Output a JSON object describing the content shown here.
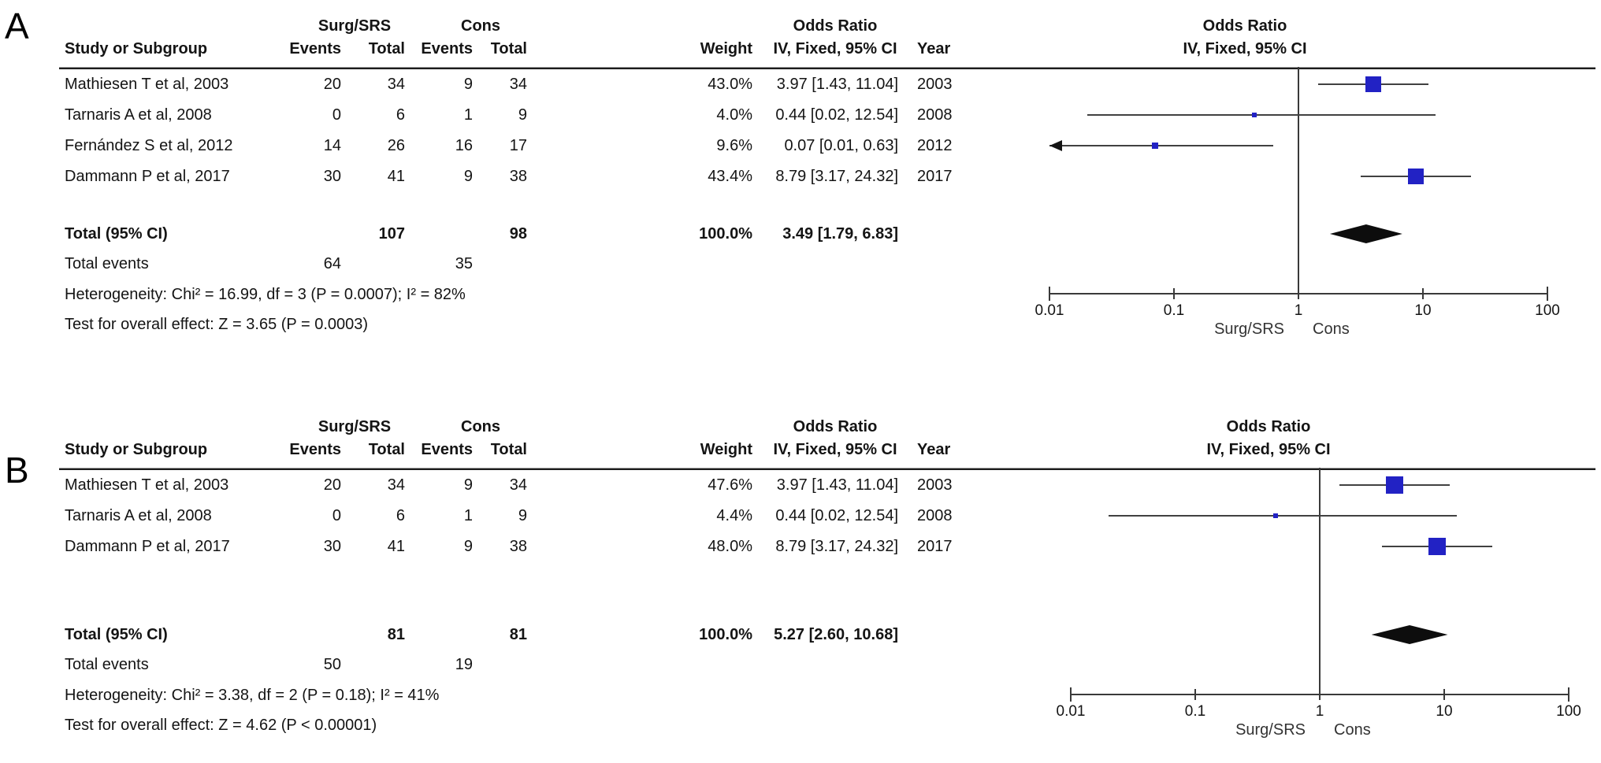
{
  "figure": {
    "description": "Forest plot meta-analysis, two panels"
  },
  "panels": [
    {
      "label": "A",
      "headers": {
        "study": "Study or Subgroup",
        "group1": "Surg/SRS",
        "group2": "Cons",
        "events": "Events",
        "total": "Total",
        "weight": "Weight",
        "or_line1": "Odds Ratio",
        "or_line2": "IV, Fixed, 95% CI",
        "year": "Year",
        "plot_line1": "Odds Ratio",
        "plot_line2": "IV, Fixed, 95% CI"
      },
      "studies": [
        {
          "name": "Mathiesen T et al, 2003",
          "e1": "20",
          "t1": "34",
          "e2": "9",
          "t2": "34",
          "weight": "43.0%",
          "or_text": "3.97 [1.43, 11.04]",
          "year": "2003",
          "or": 3.97,
          "lo": 1.43,
          "hi": 11.04,
          "w": 43.0
        },
        {
          "name": "Tarnaris A et al, 2008",
          "e1": "0",
          "t1": "6",
          "e2": "1",
          "t2": "9",
          "weight": "4.0%",
          "or_text": "0.44 [0.02, 12.54]",
          "year": "2008",
          "or": 0.44,
          "lo": 0.02,
          "hi": 12.54,
          "w": 4.0
        },
        {
          "name": "Fernández S et al, 2012",
          "e1": "14",
          "t1": "26",
          "e2": "16",
          "t2": "17",
          "weight": "9.6%",
          "or_text": "0.07 [0.01, 0.63]",
          "year": "2012",
          "or": 0.07,
          "lo": 0.01,
          "hi": 0.63,
          "w": 9.6
        },
        {
          "name": "Dammann P et al, 2017",
          "e1": "30",
          "t1": "41",
          "e2": "9",
          "t2": "38",
          "weight": "43.4%",
          "or_text": "8.79 [3.17, 24.32]",
          "year": "2017",
          "or": 8.79,
          "lo": 3.17,
          "hi": 24.32,
          "w": 43.4
        }
      ],
      "total": {
        "label": "Total (95% CI)",
        "t1": "107",
        "t2": "98",
        "weight": "100.0%",
        "or_text": "3.49 [1.79, 6.83]",
        "or": 3.49,
        "lo": 1.79,
        "hi": 6.83
      },
      "total_events": {
        "label": "Total events",
        "e1": "64",
        "e2": "35"
      },
      "heterogeneity": "Heterogeneity: Chi² = 16.99, df = 3 (P = 0.0007); I² = 82%",
      "overall": "Test for overall effect: Z = 3.65 (P = 0.0003)",
      "axis": {
        "tick_labels": [
          "0.01",
          "0.1",
          "1",
          "10",
          "100"
        ],
        "ticks": [
          0.01,
          0.1,
          1,
          10,
          100
        ],
        "favours_left": "Surg/SRS",
        "favours_right": "Cons"
      }
    },
    {
      "label": "B",
      "headers": {
        "study": "Study or Subgroup",
        "group1": "Surg/SRS",
        "group2": "Cons",
        "events": "Events",
        "total": "Total",
        "weight": "Weight",
        "or_line1": "Odds Ratio",
        "or_line2": "IV, Fixed, 95% CI",
        "year": "Year",
        "plot_line1": "Odds Ratio",
        "plot_line2": "IV, Fixed, 95% CI"
      },
      "studies": [
        {
          "name": "Mathiesen T et al, 2003",
          "e1": "20",
          "t1": "34",
          "e2": "9",
          "t2": "34",
          "weight": "47.6%",
          "or_text": "3.97 [1.43, 11.04]",
          "year": "2003",
          "or": 3.97,
          "lo": 1.43,
          "hi": 11.04,
          "w": 47.6
        },
        {
          "name": "Tarnaris A et al, 2008",
          "e1": "0",
          "t1": "6",
          "e2": "1",
          "t2": "9",
          "weight": "4.4%",
          "or_text": "0.44 [0.02, 12.54]",
          "year": "2008",
          "or": 0.44,
          "lo": 0.02,
          "hi": 12.54,
          "w": 4.4
        },
        {
          "name": "Dammann P et al, 2017",
          "e1": "30",
          "t1": "41",
          "e2": "9",
          "t2": "38",
          "weight": "48.0%",
          "or_text": "8.79 [3.17, 24.32]",
          "year": "2017",
          "or": 8.79,
          "lo": 3.17,
          "hi": 24.32,
          "w": 48.0
        }
      ],
      "total": {
        "label": "Total (95% CI)",
        "t1": "81",
        "t2": "81",
        "weight": "100.0%",
        "or_text": "5.27 [2.60, 10.68]",
        "or": 5.27,
        "lo": 2.6,
        "hi": 10.68
      },
      "total_events": {
        "label": "Total events",
        "e1": "50",
        "e2": "19"
      },
      "heterogeneity": "Heterogeneity: Chi² = 3.38, df = 2 (P = 0.18); I² = 41%",
      "overall": "Test for overall effect: Z = 4.62 (P < 0.00001)",
      "axis": {
        "tick_labels": [
          "0.01",
          "0.1",
          "1",
          "10",
          "100"
        ],
        "ticks": [
          0.01,
          0.1,
          1,
          10,
          100
        ],
        "favours_left": "Surg/SRS",
        "favours_right": "Cons"
      }
    }
  ],
  "colors": {
    "marker_blue": "#2222c4",
    "diamond_black": "#0d0d0d",
    "line_gray": "#414141"
  },
  "chart_data": [
    {
      "type": "forest",
      "title": "Panel A — Odds Ratio, IV, Fixed, 95% CI",
      "x_scale": "log10",
      "xlim": [
        0.01,
        100
      ],
      "x_ticks": [
        0.01,
        0.1,
        1,
        10,
        100
      ],
      "favours_labels": [
        "Surg/SRS",
        "Cons"
      ],
      "studies": [
        {
          "name": "Mathiesen T et al, 2003",
          "year": 2003,
          "events_surg": 20,
          "total_surg": 34,
          "events_cons": 9,
          "total_cons": 34,
          "weight_pct": 43.0,
          "or": 3.97,
          "ci95": [
            1.43,
            11.04
          ]
        },
        {
          "name": "Tarnaris A et al, 2008",
          "year": 2008,
          "events_surg": 0,
          "total_surg": 6,
          "events_cons": 1,
          "total_cons": 9,
          "weight_pct": 4.0,
          "or": 0.44,
          "ci95": [
            0.02,
            12.54
          ]
        },
        {
          "name": "Fernández S et al, 2012",
          "year": 2012,
          "events_surg": 14,
          "total_surg": 26,
          "events_cons": 16,
          "total_cons": 17,
          "weight_pct": 9.6,
          "or": 0.07,
          "ci95": [
            0.01,
            0.63
          ],
          "lower_ci_clipped_arrow": true
        },
        {
          "name": "Dammann P et al, 2017",
          "year": 2017,
          "events_surg": 30,
          "total_surg": 41,
          "events_cons": 9,
          "total_cons": 38,
          "weight_pct": 43.4,
          "or": 8.79,
          "ci95": [
            3.17,
            24.32
          ]
        }
      ],
      "total": {
        "or": 3.49,
        "ci95": [
          1.79,
          6.83
        ],
        "n_surg": 107,
        "n_cons": 98,
        "events_surg": 64,
        "events_cons": 35,
        "weight_pct": 100.0
      },
      "heterogeneity": {
        "chi2": 16.99,
        "df": 3,
        "p": 0.0007,
        "i2_pct": 82
      },
      "overall_effect": {
        "z": 3.65,
        "p": 0.0003
      }
    },
    {
      "type": "forest",
      "title": "Panel B — Odds Ratio, IV, Fixed, 95% CI",
      "x_scale": "log10",
      "xlim": [
        0.01,
        100
      ],
      "x_ticks": [
        0.01,
        0.1,
        1,
        10,
        100
      ],
      "favours_labels": [
        "Surg/SRS",
        "Cons"
      ],
      "studies": [
        {
          "name": "Mathiesen T et al, 2003",
          "year": 2003,
          "events_surg": 20,
          "total_surg": 34,
          "events_cons": 9,
          "total_cons": 34,
          "weight_pct": 47.6,
          "or": 3.97,
          "ci95": [
            1.43,
            11.04
          ]
        },
        {
          "name": "Tarnaris A et al, 2008",
          "year": 2008,
          "events_surg": 0,
          "total_surg": 6,
          "events_cons": 1,
          "total_cons": 9,
          "weight_pct": 4.4,
          "or": 0.44,
          "ci95": [
            0.02,
            12.54
          ]
        },
        {
          "name": "Dammann P et al, 2017",
          "year": 2017,
          "events_surg": 30,
          "total_surg": 41,
          "events_cons": 9,
          "total_cons": 38,
          "weight_pct": 48.0,
          "or": 8.79,
          "ci95": [
            3.17,
            24.32
          ]
        }
      ],
      "total": {
        "or": 5.27,
        "ci95": [
          2.6,
          10.68
        ],
        "n_surg": 81,
        "n_cons": 81,
        "events_surg": 50,
        "events_cons": 19,
        "weight_pct": 100.0
      },
      "heterogeneity": {
        "chi2": 3.38,
        "df": 2,
        "p": 0.18,
        "i2_pct": 41
      },
      "overall_effect": {
        "z": 4.62,
        "p": "< 0.00001"
      }
    }
  ]
}
